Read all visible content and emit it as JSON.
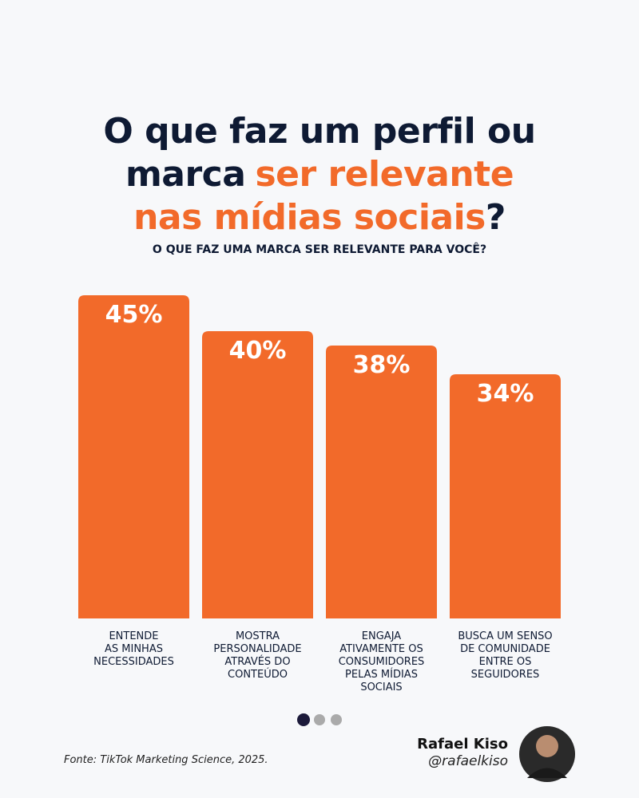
{
  "chart_data": {
    "type": "bar",
    "title_lines": [
      [
        {
          "text": "O que faz um perfil ou",
          "color": "#0e1a33"
        }
      ],
      [
        {
          "text": "marca",
          "color": "#0e1a33"
        },
        {
          "text": "ser relevante",
          "color": "#f26a2a"
        }
      ],
      [
        {
          "text": "nas mídias sociais",
          "color": "#f26a2a"
        },
        {
          "text": "?",
          "color": "#0e1a33"
        }
      ]
    ],
    "subtitle": "O QUE FAZ UMA MARCA SER RELEVANTE PARA VOCÊ?",
    "categories": [
      "ENTENDE\nAS MINHAS\nNECESSIDADES",
      "MOSTRA\nPERSONALIDADE\nATRAVÉS DO\nCONTEÚDO",
      "ENGAJA\nATIVAMENTE OS\nCONSUMIDORES\nPELAS MÍDIAS\nSOCIAIS",
      "BUSCA UM SENSO\nDE COMUNIDADE\nENTRE OS\nSEGUIDORES"
    ],
    "values": [
      45,
      40,
      38,
      34
    ],
    "value_labels": [
      "45%",
      "40%",
      "38%",
      "34%"
    ],
    "color": "#f26a2a",
    "source": "Fonte: TikTok Marketing Science, 2025.",
    "author": {
      "name": "Rafael Kiso",
      "handle": "@rafaelkiso"
    }
  }
}
